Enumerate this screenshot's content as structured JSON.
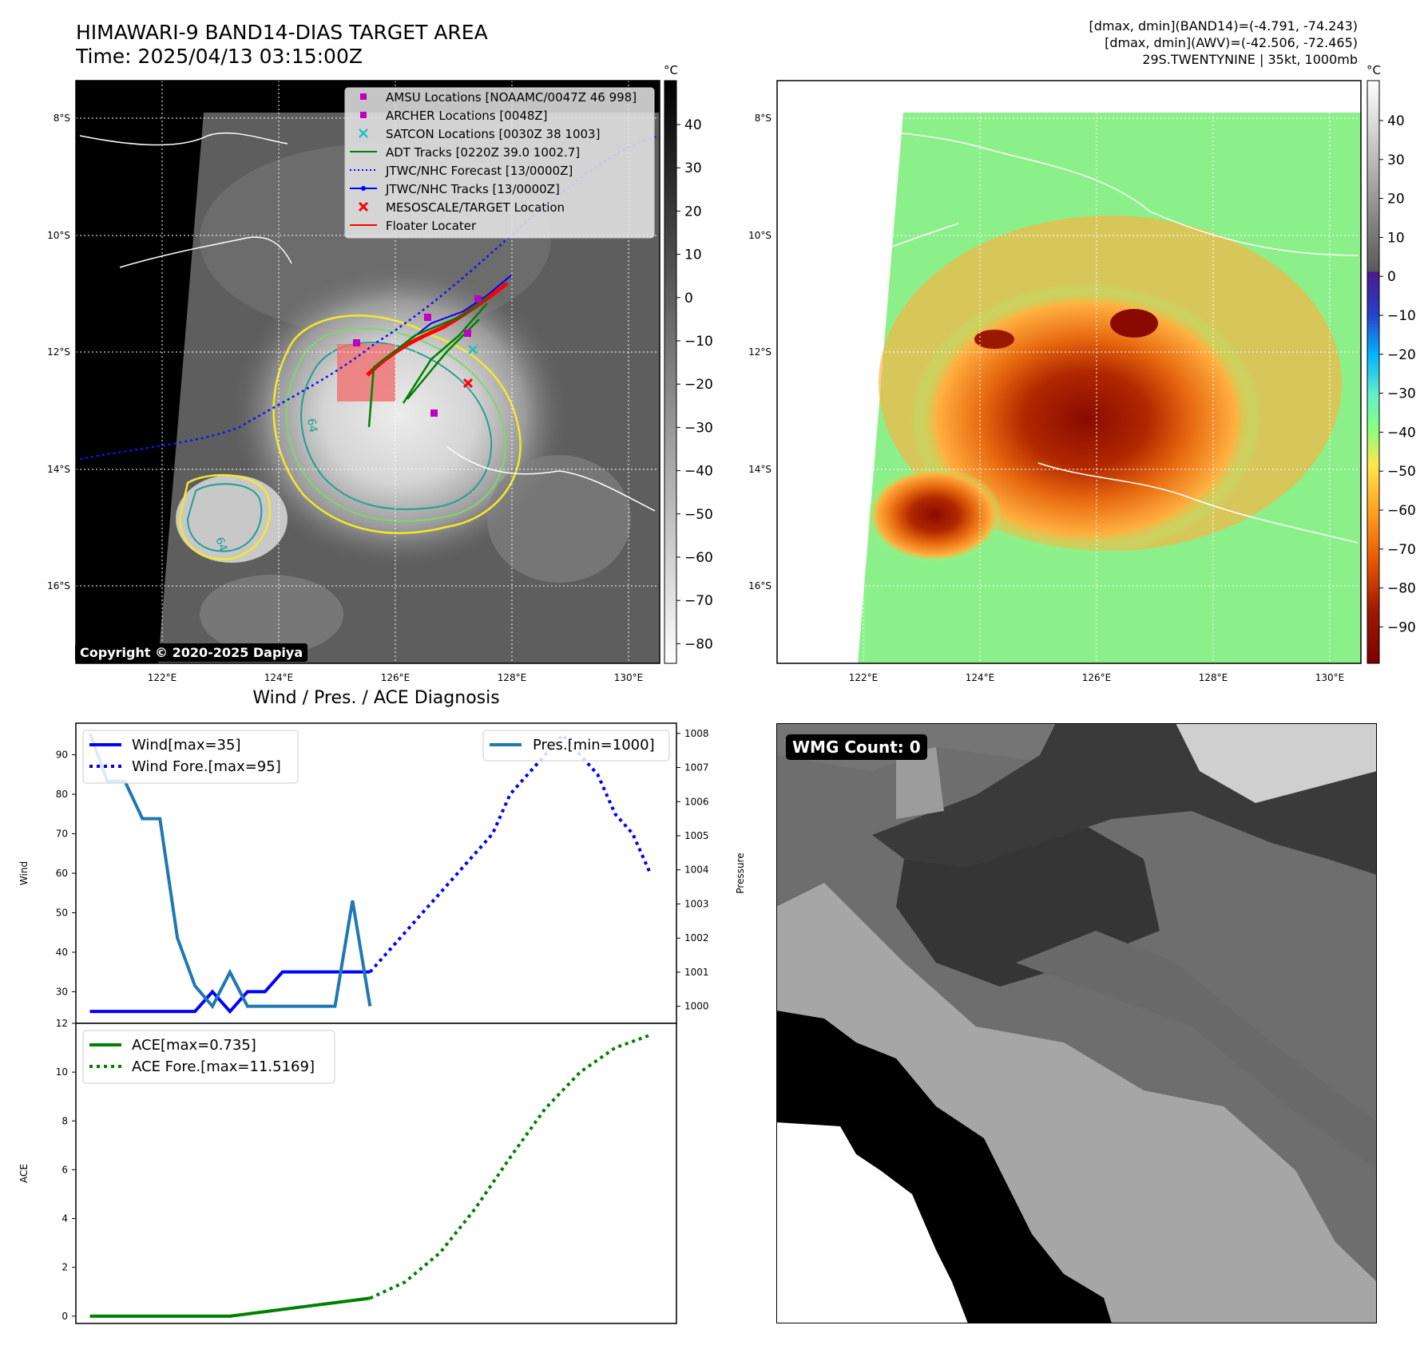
{
  "header": {
    "title_line1": "HIMAWARI-9 BAND14-DIAS TARGET AREA",
    "title_line2": "Time: 2025/04/13 03:15:00Z",
    "info_line1": "[dmax, dmin](BAND14)=(-4.791, -74.243)",
    "info_line2": "[dmax, dmin](AWV)=(-42.506, -72.465)",
    "info_line3": "29S.TWENTYNINE | 35kt, 1000mb"
  },
  "map": {
    "lat_labels": [
      "8°S",
      "10°S",
      "12°S",
      "14°S",
      "16°S"
    ],
    "lon_labels": [
      "122°E",
      "124°E",
      "126°E",
      "128°E",
      "130°E"
    ],
    "copyright": "Copyright © 2020-2025 Dapiya",
    "contour_labels": [
      "64",
      "64"
    ],
    "legend": [
      "AMSU Locations [NOAAMC/0047Z 46 998]",
      "ARCHER Locations [0048Z]",
      "SATCON Locations [0030Z 38 1003]",
      "ADT Tracks [0220Z 39.0 1002.7]",
      "JTWC/NHC Forecast [13/0000Z]",
      "JTWC/NHC Tracks [13/0000Z]",
      "MESOSCALE/TARGET Location",
      "Floater Locater"
    ],
    "colorbar_unit": "°C",
    "gray_ticks": [
      "40",
      "30",
      "20",
      "10",
      "0",
      "−10",
      "−20",
      "−30",
      "−40",
      "−50",
      "−60",
      "−70",
      "−80"
    ],
    "color_ticks": [
      "40",
      "30",
      "20",
      "10",
      "0",
      "−10",
      "−20",
      "−30",
      "−40",
      "−50",
      "−60",
      "−70",
      "−80",
      "−90"
    ]
  },
  "diagnosis": {
    "title": "Wind / Pres. / ACE Diagnosis",
    "wind_ylabel": "Wind",
    "pres_ylabel": "Pressure",
    "ace_ylabel": "ACE",
    "legend_wind": "Wind[max=35]",
    "legend_wind_fore": "Wind Fore.[max=95]",
    "legend_pres": "Pres.[min=1000]",
    "legend_ace": "ACE[max=0.735]",
    "legend_ace_fore": "ACE Fore.[max=11.5169]"
  },
  "wmg": {
    "label": "WMG Count: 0"
  },
  "colors": {
    "wind": "#0000ff",
    "pres": "#1f77b4",
    "ace": "#008000",
    "adt": "#008000",
    "track": "#0000ff",
    "floater": "#ff0000"
  },
  "chart_data": [
    {
      "type": "line",
      "name": "wind-pressure",
      "wind_ylim": [
        22,
        98
      ],
      "wind_yticks": [
        30,
        40,
        50,
        60,
        70,
        80,
        90
      ],
      "pres_ylim": [
        999.5,
        1008.3
      ],
      "pres_yticks": [
        1000,
        1001,
        1002,
        1003,
        1004,
        1005,
        1006,
        1007,
        1008
      ],
      "series": [
        {
          "name": "Wind[max=35]",
          "axis": "wind",
          "style": "solid",
          "x": [
            0,
            1,
            2,
            3,
            4,
            5,
            6,
            7,
            8,
            9,
            10,
            11,
            12,
            13,
            14,
            15,
            16
          ],
          "values": [
            25,
            25,
            25,
            25,
            25,
            25,
            25,
            30,
            25,
            30,
            30,
            35,
            35,
            35,
            35,
            35,
            35
          ]
        },
        {
          "name": "Wind Fore.[max=95]",
          "axis": "wind",
          "style": "dotted",
          "x": [
            16,
            17,
            18,
            19,
            20,
            21,
            22,
            23,
            24,
            25,
            26,
            27,
            28,
            29,
            30,
            31,
            32
          ],
          "values": [
            35,
            40,
            45,
            50,
            55,
            60,
            65,
            70,
            80,
            85,
            90,
            95,
            90,
            85,
            75,
            70,
            60
          ]
        },
        {
          "name": "Pres.[min=1000]",
          "axis": "pres",
          "style": "solid",
          "x": [
            0,
            1,
            2,
            3,
            4,
            5,
            6,
            7,
            8,
            9,
            10,
            11,
            12,
            13,
            14,
            15,
            16
          ],
          "values": [
            1008,
            1006.6,
            1006.6,
            1005.5,
            1005.5,
            1002,
            1000.6,
            1000,
            1001,
            1000,
            1000,
            1000,
            1000,
            1000,
            1000,
            1003.1,
            1000
          ]
        }
      ],
      "x_range": [
        -0.8,
        33.5
      ]
    },
    {
      "type": "line",
      "name": "ace",
      "ylim": [
        -0.3,
        12
      ],
      "yticks": [
        0,
        2,
        4,
        6,
        8,
        10,
        12
      ],
      "series": [
        {
          "name": "ACE[max=0.735]",
          "style": "solid",
          "x": [
            0,
            8,
            16
          ],
          "values": [
            0,
            0,
            0.735
          ]
        },
        {
          "name": "ACE Fore.[max=11.5169]",
          "style": "dotted",
          "x": [
            16,
            18,
            20,
            22,
            24,
            26,
            28,
            30,
            32
          ],
          "values": [
            0.735,
            1.4,
            2.6,
            4.4,
            6.5,
            8.5,
            10.0,
            11.0,
            11.5169
          ]
        }
      ],
      "x_range": [
        -0.8,
        33.5
      ]
    }
  ]
}
